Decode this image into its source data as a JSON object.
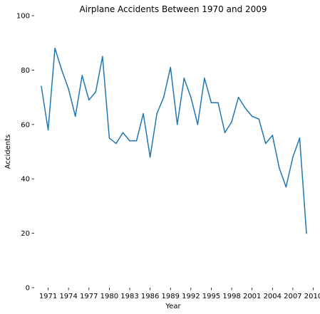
{
  "chart_data": {
    "type": "line",
    "title": "Airplane Accidents Between 1970 and 2009",
    "xlabel": "Year",
    "ylabel": "Accidents",
    "xlim": [
      1968.95,
      2010.05
    ],
    "ylim": [
      0,
      100
    ],
    "x_ticks": [
      1971,
      1974,
      1977,
      1980,
      1983,
      1986,
      1989,
      1992,
      1995,
      1998,
      2001,
      2004,
      2007,
      2010
    ],
    "y_ticks": [
      0,
      20,
      40,
      60,
      80,
      100
    ],
    "grid": false,
    "line_color": "#1f77b4",
    "series": [
      {
        "x": [
          1970,
          1971,
          1972,
          1973,
          1974,
          1975,
          1976,
          1977,
          1978,
          1979,
          1980,
          1981,
          1982,
          1983,
          1984,
          1985,
          1986,
          1987,
          1988,
          1989,
          1990,
          1991,
          1992,
          1993,
          1994,
          1995,
          1996,
          1997,
          1998,
          1999,
          2000,
          2001,
          2002,
          2003,
          2004,
          2005,
          2006,
          2007,
          2008,
          2009
        ],
        "values": [
          74,
          58,
          88,
          80,
          73,
          63,
          78,
          69,
          72,
          85,
          55,
          53,
          57,
          54,
          54,
          64,
          48,
          64,
          70,
          81,
          60,
          77,
          70,
          60,
          77,
          68,
          68,
          57,
          61,
          70,
          66,
          63,
          62,
          53,
          56,
          44,
          37,
          48,
          55,
          20
        ]
      }
    ]
  }
}
